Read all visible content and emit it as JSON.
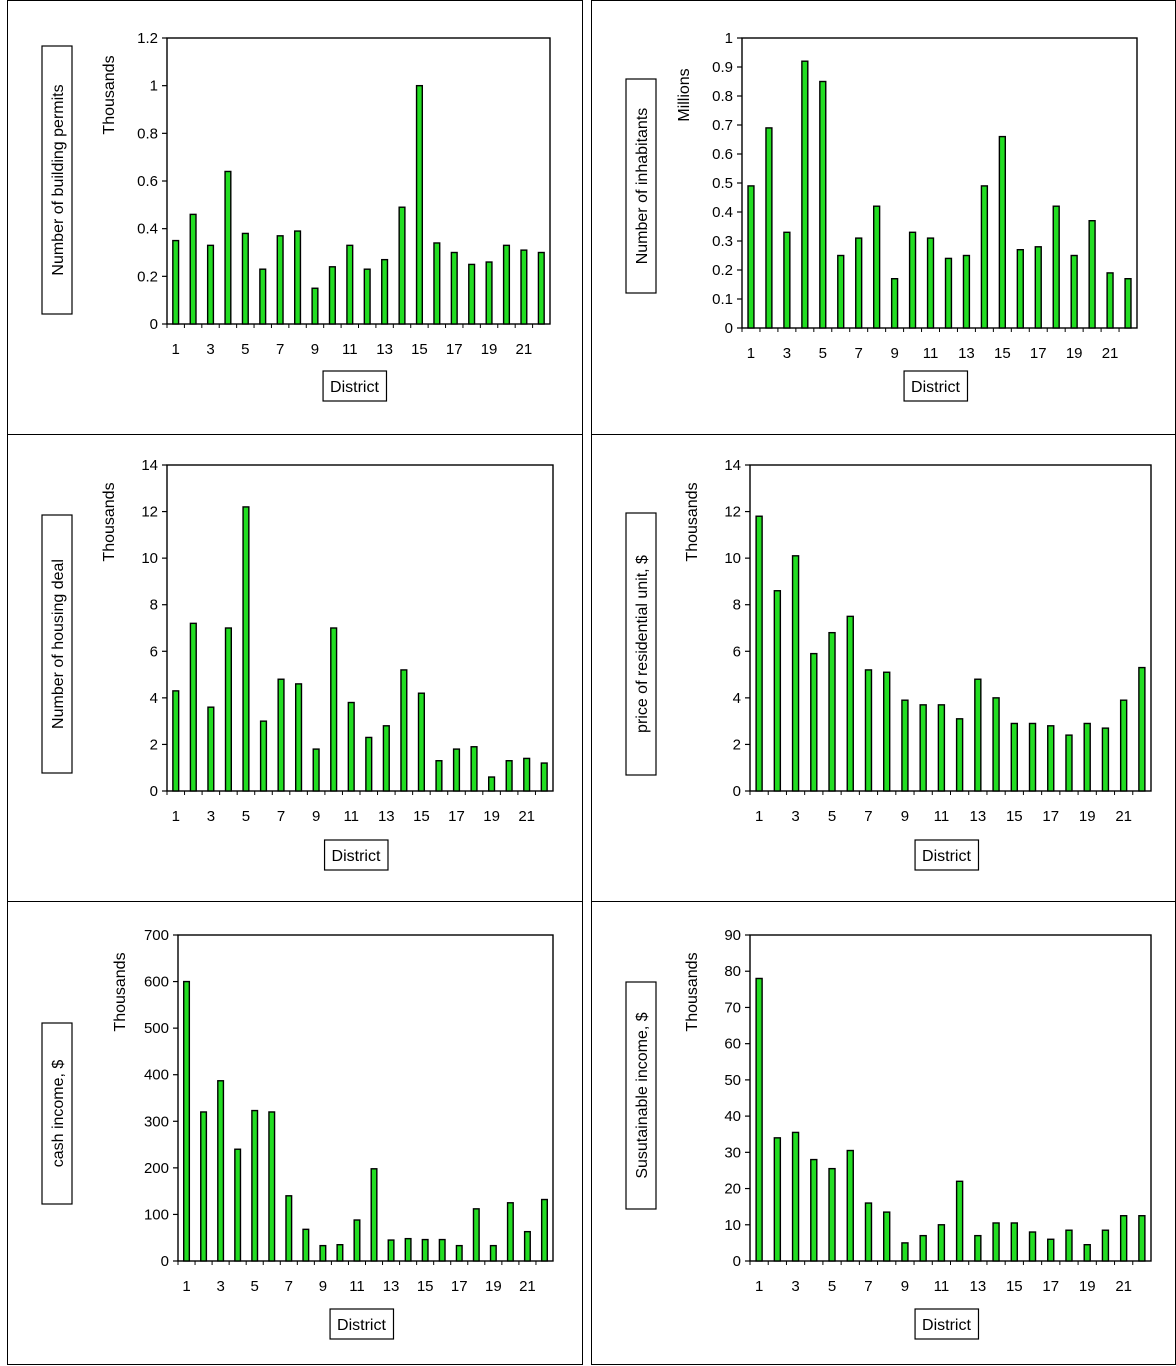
{
  "charts": [
    {
      "type": "bar",
      "xlabel": "District",
      "ylabel": "Number of building permits",
      "yunit": "Thousands",
      "ylim": [
        0,
        1.2
      ],
      "yticks": [
        "0",
        "0.2",
        "0.4",
        "0.6",
        "0.8",
        "1",
        "1.2"
      ],
      "xticks": [
        "1",
        "3",
        "5",
        "7",
        "9",
        "11",
        "13",
        "15",
        "17",
        "19",
        "21"
      ],
      "bar_color": "#22dd22"
    },
    {
      "type": "bar",
      "xlabel": "District",
      "ylabel": "Number of inhabitants",
      "yunit": "Millions",
      "ylim": [
        0,
        1
      ],
      "yticks": [
        "0",
        "0.1",
        "0.2",
        "0.3",
        "0.4",
        "0.5",
        "0.6",
        "0.7",
        "0.8",
        "0.9",
        "1"
      ],
      "xticks": [
        "1",
        "3",
        "5",
        "7",
        "9",
        "11",
        "13",
        "15",
        "17",
        "19",
        "21"
      ],
      "bar_color": "#22dd22"
    },
    {
      "type": "bar",
      "xlabel": "District",
      "ylabel": "Number of housing deal",
      "yunit": "Thousands",
      "ylim": [
        0,
        14
      ],
      "yticks": [
        "0",
        "2",
        "4",
        "6",
        "8",
        "10",
        "12",
        "14"
      ],
      "xticks": [
        "1",
        "3",
        "5",
        "7",
        "9",
        "11",
        "13",
        "15",
        "17",
        "19",
        "21"
      ],
      "bar_color": "#22dd22"
    },
    {
      "type": "bar",
      "xlabel": "District",
      "ylabel": "price of residential unit, $",
      "yunit": "Thousands",
      "ylim": [
        0,
        14
      ],
      "yticks": [
        "0",
        "2",
        "4",
        "6",
        "8",
        "10",
        "12",
        "14"
      ],
      "xticks": [
        "1",
        "3",
        "5",
        "7",
        "9",
        "11",
        "13",
        "15",
        "17",
        "19",
        "21"
      ],
      "bar_color": "#22dd22"
    },
    {
      "type": "bar",
      "xlabel": "District",
      "ylabel": "cash income, $",
      "yunit": "Thousands",
      "ylim": [
        0,
        700
      ],
      "yticks": [
        "0",
        "100",
        "200",
        "300",
        "400",
        "500",
        "600",
        "700"
      ],
      "xticks": [
        "1",
        "3",
        "5",
        "7",
        "9",
        "11",
        "13",
        "15",
        "17",
        "19",
        "21"
      ],
      "bar_color": "#22dd22"
    },
    {
      "type": "bar",
      "xlabel": "District",
      "ylabel": "Susutainable  income, $",
      "yunit": "Thousands",
      "ylim": [
        0,
        90
      ],
      "yticks": [
        "0",
        "10",
        "20",
        "30",
        "40",
        "50",
        "60",
        "70",
        "80",
        "90"
      ],
      "xticks": [
        "1",
        "3",
        "5",
        "7",
        "9",
        "11",
        "13",
        "15",
        "17",
        "19",
        "21"
      ],
      "bar_color": "#22dd22"
    }
  ],
  "chart_data": [
    {
      "type": "bar",
      "xlabel": "District",
      "ylabel": "Number of building permits",
      "unit": "Thousands",
      "ylim": [
        0,
        1.2
      ],
      "categories": [
        1,
        2,
        3,
        4,
        5,
        6,
        7,
        8,
        9,
        10,
        11,
        12,
        13,
        14,
        15,
        16,
        17,
        18,
        19,
        20,
        21,
        22
      ],
      "values": [
        0.35,
        0.46,
        0.33,
        0.64,
        0.38,
        0.23,
        0.37,
        0.39,
        0.15,
        0.24,
        0.33,
        0.23,
        0.27,
        0.49,
        1.0,
        0.34,
        0.3,
        0.25,
        0.26,
        0.33,
        0.31,
        0.3
      ]
    },
    {
      "type": "bar",
      "xlabel": "District",
      "ylabel": "Number of inhabitants",
      "unit": "Millions",
      "ylim": [
        0,
        1
      ],
      "categories": [
        1,
        2,
        3,
        4,
        5,
        6,
        7,
        8,
        9,
        10,
        11,
        12,
        13,
        14,
        15,
        16,
        17,
        18,
        19,
        20,
        21,
        22
      ],
      "values": [
        0.49,
        0.69,
        0.33,
        0.92,
        0.85,
        0.25,
        0.31,
        0.42,
        0.17,
        0.33,
        0.31,
        0.24,
        0.25,
        0.49,
        0.66,
        0.27,
        0.28,
        0.42,
        0.25,
        0.37,
        0.19,
        0.17
      ]
    },
    {
      "type": "bar",
      "xlabel": "District",
      "ylabel": "Number of housing deal",
      "unit": "Thousands",
      "ylim": [
        0,
        14
      ],
      "categories": [
        1,
        2,
        3,
        4,
        5,
        6,
        7,
        8,
        9,
        10,
        11,
        12,
        13,
        14,
        15,
        16,
        17,
        18,
        19,
        20,
        21,
        22
      ],
      "values": [
        4.3,
        7.2,
        3.6,
        7.0,
        12.2,
        3.0,
        4.8,
        4.6,
        1.8,
        7.0,
        3.8,
        2.3,
        2.8,
        5.2,
        4.2,
        1.3,
        1.8,
        1.9,
        0.6,
        1.3,
        1.4,
        1.2
      ]
    },
    {
      "type": "bar",
      "xlabel": "District",
      "ylabel": "price of residential unit, $",
      "unit": "Thousands",
      "ylim": [
        0,
        14
      ],
      "categories": [
        1,
        2,
        3,
        4,
        5,
        6,
        7,
        8,
        9,
        10,
        11,
        12,
        13,
        14,
        15,
        16,
        17,
        18,
        19,
        20,
        21,
        22
      ],
      "values": [
        11.8,
        8.6,
        10.1,
        5.9,
        6.8,
        7.5,
        5.2,
        5.1,
        3.9,
        3.7,
        3.7,
        3.1,
        4.8,
        4.0,
        2.9,
        2.9,
        2.8,
        2.4,
        2.9,
        2.7,
        3.9,
        5.3
      ]
    },
    {
      "type": "bar",
      "xlabel": "District",
      "ylabel": "cash income, $",
      "unit": "Thousands",
      "ylim": [
        0,
        700
      ],
      "categories": [
        1,
        2,
        3,
        4,
        5,
        6,
        7,
        8,
        9,
        10,
        11,
        12,
        13,
        14,
        15,
        16,
        17,
        18,
        19,
        20,
        21,
        22
      ],
      "values": [
        600,
        320,
        387,
        240,
        323,
        320,
        140,
        68,
        33,
        35,
        88,
        198,
        45,
        48,
        46,
        46,
        33,
        112,
        33,
        125,
        63,
        132
      ]
    },
    {
      "type": "bar",
      "xlabel": "District",
      "ylabel": "Susutainable  income, $",
      "unit": "Thousands",
      "ylim": [
        0,
        90
      ],
      "categories": [
        1,
        2,
        3,
        4,
        5,
        6,
        7,
        8,
        9,
        10,
        11,
        12,
        13,
        14,
        15,
        16,
        17,
        18,
        19,
        20,
        21,
        22
      ],
      "values": [
        78,
        34,
        35.5,
        28,
        25.5,
        30.5,
        16,
        13.5,
        5,
        7,
        10,
        22,
        7,
        10.5,
        10.5,
        8,
        6,
        8.5,
        4.5,
        8.5,
        12.5,
        12.5
      ]
    }
  ]
}
